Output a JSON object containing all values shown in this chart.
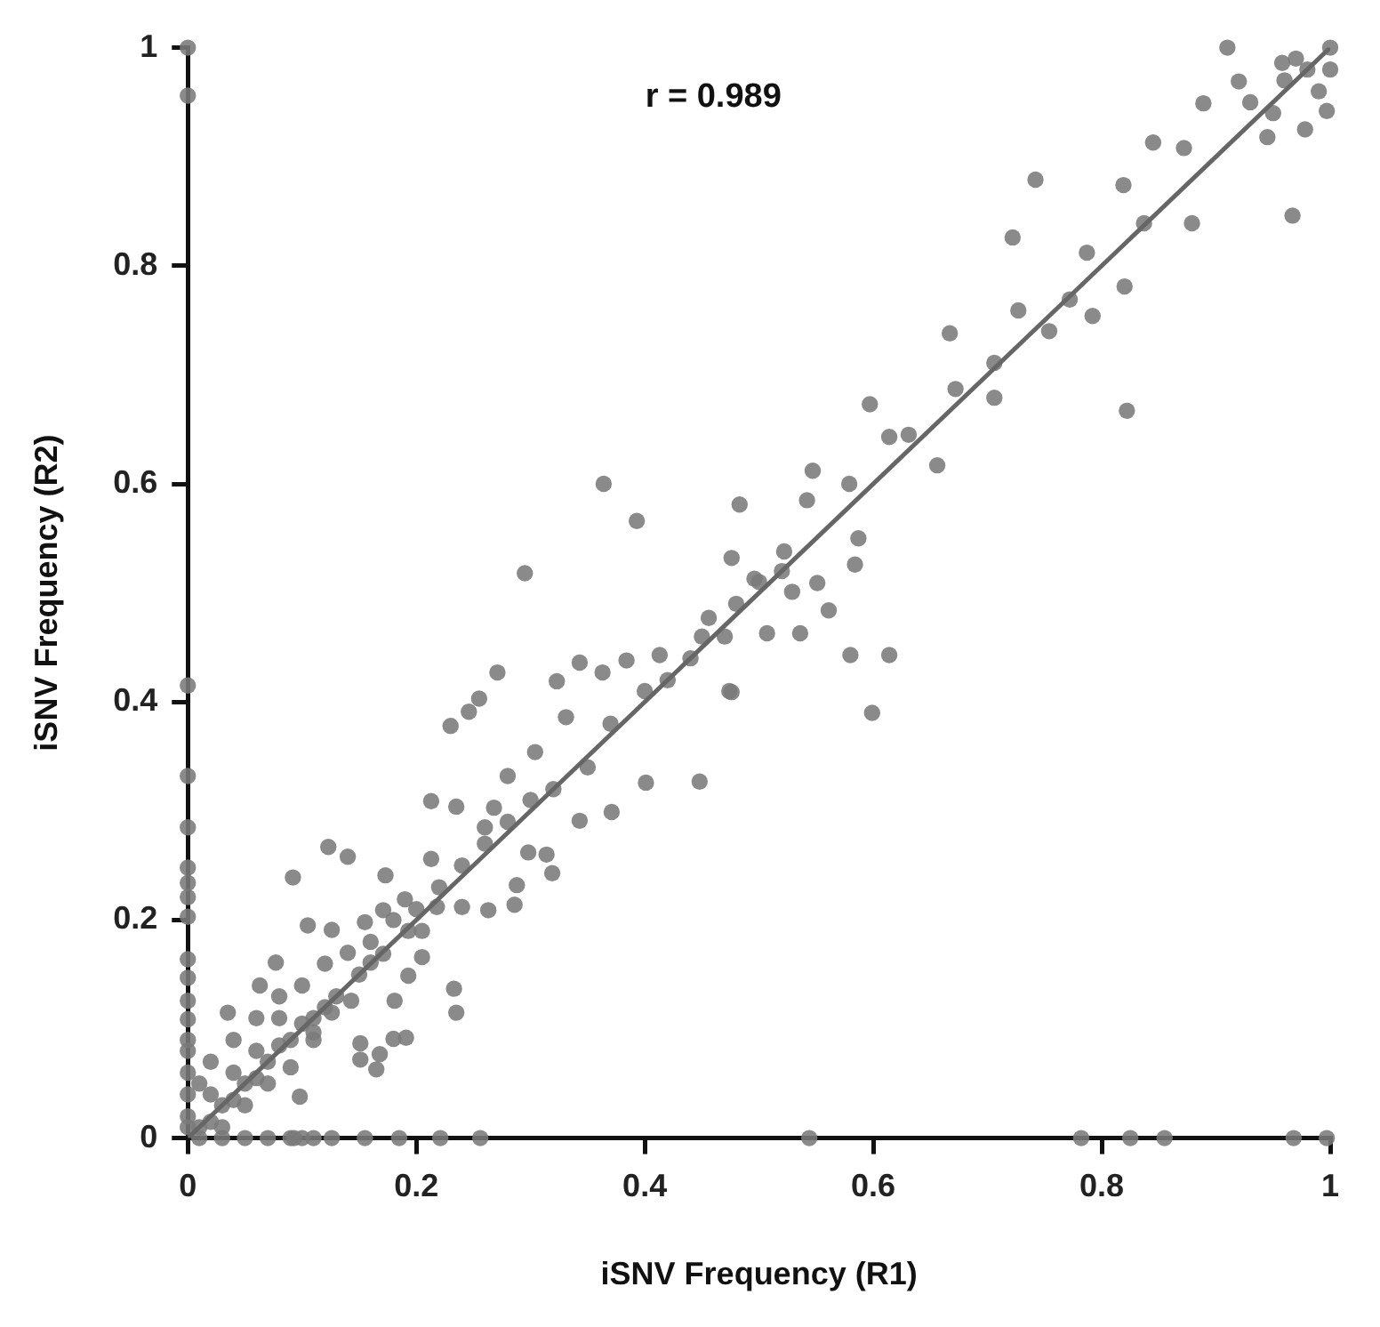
{
  "chart_data": {
    "type": "scatter",
    "xlabel": "iSNV Frequency (R1)",
    "ylabel": "iSNV Frequency (R2)",
    "annotations": [
      "r = 0.989"
    ],
    "xlim": [
      0,
      1
    ],
    "ylim": [
      0,
      1
    ],
    "xticks": [
      0,
      0.2,
      0.4,
      0.6,
      0.8,
      1
    ],
    "yticks": [
      0,
      0.2,
      0.4,
      0.6,
      0.8,
      1
    ],
    "grid": false,
    "legend": false,
    "marker": "circle",
    "series": [
      {
        "color": "#7a7a7a",
        "x": [
          0,
          0,
          0.364,
          0.393,
          0.295,
          0.483,
          0.91,
          0.742,
          0.722,
          0.667,
          0.597,
          0.822,
          0.967,
          0.845,
          0.819,
          0.772,
          0.787,
          0.837,
          0.879,
          0.872,
          0.889,
          0.945,
          0.978,
          0.958,
          0.92,
          0.997,
          0.792,
          0.82,
          0.754,
          0.727,
          0.706,
          0.706,
          0.672,
          0.656,
          0.614,
          0.631,
          0.579,
          0.547,
          0.542,
          0.587,
          0.584,
          0.551,
          0.529,
          0.522,
          0.476,
          0.496,
          0.507,
          0.536,
          0.561,
          0.58,
          0.614,
          0.599,
          0.476,
          0.544,
          0.782,
          0.825,
          0.855,
          0.968,
          0.997,
          0,
          0,
          0,
          0,
          0,
          0,
          0,
          0,
          0,
          0,
          0,
          0.093,
          0.126,
          0.155,
          0.185,
          0.221,
          0.256,
          0.271,
          0.23,
          0.246,
          0.255,
          0.343,
          0.363,
          0.384,
          0.413,
          0.456,
          0.474,
          0.448,
          0.401,
          0.371,
          0.343,
          0.323,
          0.331,
          0.304,
          0.28,
          0.298,
          0.314,
          0.319,
          0.263,
          0.286,
          0.24,
          0.213,
          0.235,
          0.213,
          0.268,
          0.288,
          0.26,
          0.173,
          0.14,
          0.123,
          0.092,
          0.19,
          0.105,
          0.126,
          0.155,
          0.171,
          0.193,
          0.205,
          0.233,
          0.235,
          0.191,
          0.18,
          0.151,
          0.168,
          0.151,
          0.165,
          0.098,
          0.077,
          0.063,
          0.035,
          0.171,
          0.16,
          0.193,
          0.143,
          0.126,
          0.11,
          0.181,
          0.205,
          0.218,
          0.01,
          0.02,
          0.03,
          0.04,
          0.05,
          0.06,
          0.07,
          0.08,
          0.09,
          0.1,
          0.11,
          0.12,
          0.13,
          0.15,
          0.02,
          0.04,
          0.06,
          0.08,
          0.03,
          0.05,
          0.07,
          0.09,
          0.11,
          0.01,
          0.02,
          0.04,
          0.06,
          0.08,
          0.1,
          0.12,
          0.14,
          0.16,
          0.18,
          0.2,
          0.22,
          0.24,
          0.26,
          0,
          0,
          0,
          0,
          0,
          0,
          0.01,
          0.03,
          0.05,
          0.07,
          0.09,
          0.1,
          0.11,
          0.96,
          0.98,
          1,
          0.99,
          0.97,
          0.95,
          0.93,
          1,
          0.35,
          0.37,
          0.4,
          0.42,
          0.44,
          0.45,
          0.47,
          0.48,
          0.5,
          0.52,
          0.3,
          0.32,
          0.28
        ],
        "values": [
          1,
          0.956,
          0.6,
          0.566,
          0.518,
          0.581,
          1,
          0.879,
          0.826,
          0.738,
          0.673,
          0.667,
          0.846,
          0.913,
          0.874,
          0.769,
          0.812,
          0.839,
          0.839,
          0.908,
          0.949,
          0.918,
          0.925,
          0.986,
          0.969,
          0.942,
          0.754,
          0.781,
          0.74,
          0.759,
          0.711,
          0.679,
          0.687,
          0.617,
          0.643,
          0.645,
          0.6,
          0.612,
          0.585,
          0.55,
          0.526,
          0.509,
          0.501,
          0.538,
          0.532,
          0.513,
          0.463,
          0.463,
          0.484,
          0.443,
          0.443,
          0.39,
          0.409,
          0,
          0,
          0,
          0,
          0,
          0,
          0.415,
          0.332,
          0.285,
          0.248,
          0.234,
          0.221,
          0.203,
          0.164,
          0.147,
          0.126,
          0.109,
          0,
          0,
          0,
          0,
          0,
          0,
          0.427,
          0.378,
          0.391,
          0.403,
          0.436,
          0.427,
          0.438,
          0.443,
          0.477,
          0.41,
          0.327,
          0.326,
          0.299,
          0.291,
          0.419,
          0.386,
          0.354,
          0.332,
          0.262,
          0.26,
          0.243,
          0.209,
          0.214,
          0.212,
          0.256,
          0.304,
          0.309,
          0.303,
          0.232,
          0.285,
          0.241,
          0.258,
          0.267,
          0.239,
          0.219,
          0.195,
          0.191,
          0.198,
          0.209,
          0.19,
          0.166,
          0.137,
          0.115,
          0.092,
          0.091,
          0.087,
          0.077,
          0.072,
          0.063,
          0.038,
          0.161,
          0.14,
          0.115,
          0.169,
          0.161,
          0.149,
          0.126,
          0.115,
          0.097,
          0.126,
          0.19,
          0.212,
          0.01,
          0.015,
          0.03,
          0.035,
          0.05,
          0.055,
          0.07,
          0.085,
          0.09,
          0.105,
          0.11,
          0.12,
          0.13,
          0.15,
          0.04,
          0.06,
          0.08,
          0.11,
          0.01,
          0.03,
          0.05,
          0.065,
          0.09,
          0.05,
          0.07,
          0.09,
          0.11,
          0.13,
          0.14,
          0.16,
          0.17,
          0.18,
          0.2,
          0.21,
          0.23,
          0.25,
          0.27,
          0.01,
          0.02,
          0.04,
          0.06,
          0.08,
          0.09,
          0,
          0,
          0,
          0,
          0,
          0,
          0,
          0.97,
          0.98,
          1,
          0.96,
          0.99,
          0.94,
          0.95,
          0.98,
          0.34,
          0.38,
          0.41,
          0.42,
          0.44,
          0.46,
          0.46,
          0.49,
          0.51,
          0.52,
          0.31,
          0.32,
          0.29
        ]
      },
      {
        "type": "line",
        "color": "#666666",
        "marker": "none",
        "x": [
          0,
          1
        ],
        "values": [
          0,
          1
        ]
      }
    ]
  }
}
